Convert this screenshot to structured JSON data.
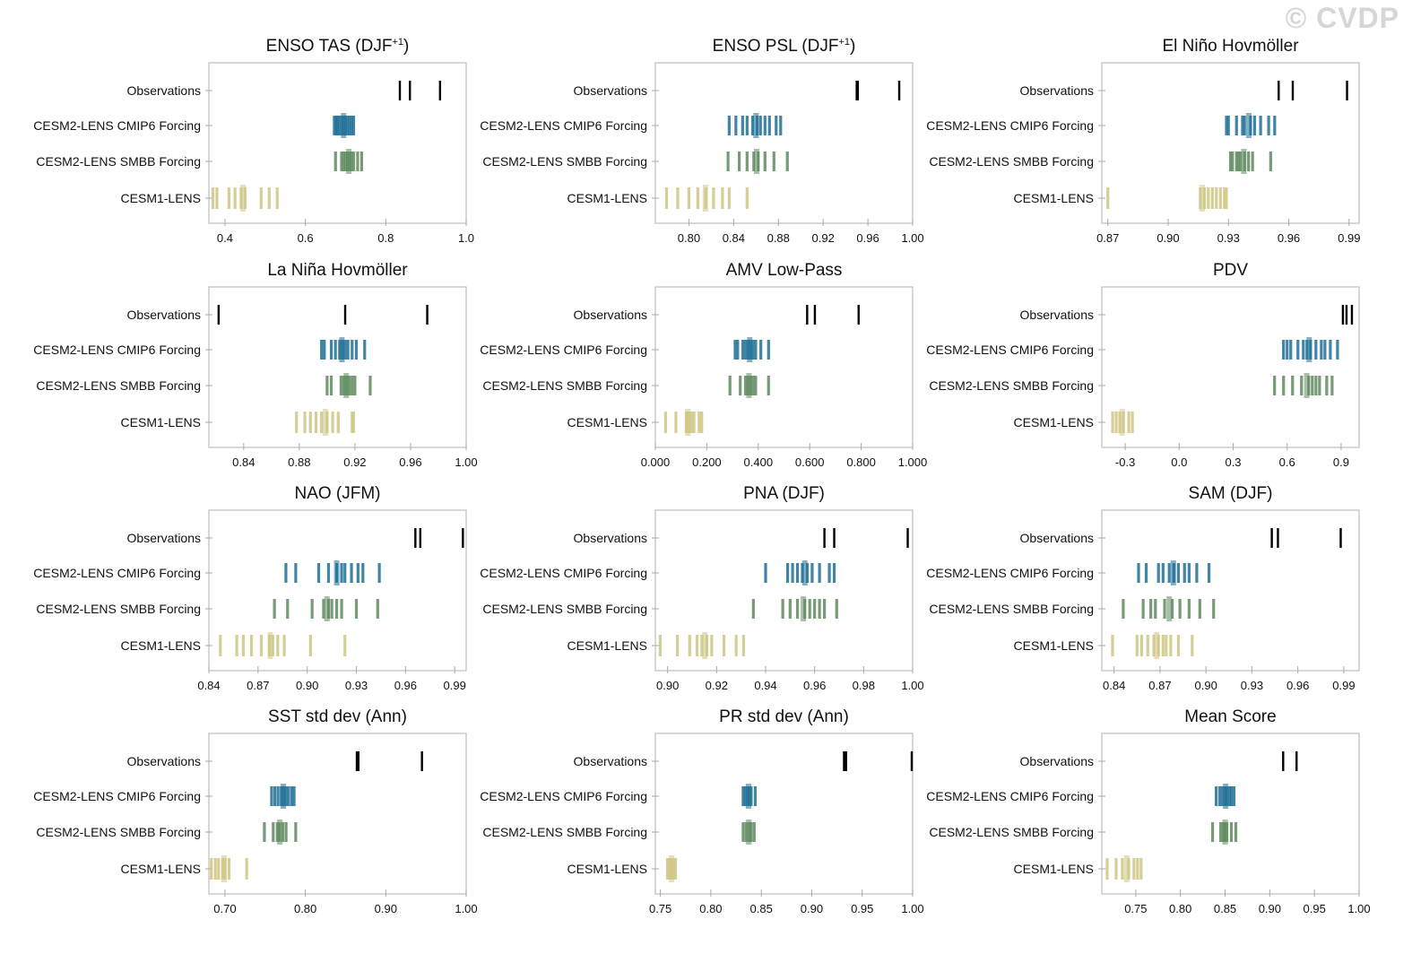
{
  "watermark": "© CVDP",
  "row_labels": [
    "Observations",
    "CESM2-LENS CMIP6 Forcing",
    "CESM2-LENS SMBB Forcing",
    "CESM1-LENS"
  ],
  "colors": {
    "obs": "#000000",
    "cmip6": "#1f6f96",
    "smbb": "#5f8a5f",
    "lens1": "#cfc783"
  },
  "chart_data": [
    {
      "type": "strip",
      "title": "ENSO TAS (DJF",
      "title_sup": "+1",
      "title_tail": ")",
      "xlim": [
        0.36,
        1.0
      ],
      "ticks": [
        "0.4",
        "0.6",
        "0.8",
        "1.0"
      ],
      "tick_values": [
        0.4,
        0.6,
        0.8,
        1.0
      ],
      "observations": [
        0.835,
        0.86,
        0.935
      ],
      "cmip6": [
        0.672,
        0.676,
        0.68,
        0.684,
        0.69,
        0.695,
        0.7,
        0.705,
        0.71,
        0.715,
        0.72
      ],
      "smbb": [
        0.675,
        0.69,
        0.695,
        0.7,
        0.705,
        0.71,
        0.715,
        0.72,
        0.73,
        0.74
      ],
      "lens1": [
        0.37,
        0.38,
        0.41,
        0.425,
        0.44,
        0.45,
        0.49,
        0.51,
        0.53
      ]
    },
    {
      "type": "strip",
      "title": "ENSO PSL (DJF",
      "title_sup": "+1",
      "title_tail": ")",
      "xlim": [
        0.77,
        1.0
      ],
      "ticks": [
        "0.80",
        "0.84",
        "0.88",
        "0.92",
        "0.96",
        "1.00"
      ],
      "tick_values": [
        0.8,
        0.84,
        0.88,
        0.92,
        0.96,
        1.0
      ],
      "observations": [
        0.95,
        0.951,
        0.988
      ],
      "cmip6": [
        0.836,
        0.842,
        0.848,
        0.852,
        0.857,
        0.861,
        0.864,
        0.868,
        0.872,
        0.878,
        0.882
      ],
      "smbb": [
        0.835,
        0.845,
        0.852,
        0.858,
        0.862,
        0.868,
        0.876,
        0.888
      ],
      "lens1": [
        0.78,
        0.79,
        0.8,
        0.808,
        0.815,
        0.822,
        0.83,
        0.836,
        0.852
      ]
    },
    {
      "type": "strip",
      "title": "El Niño Hovmöller",
      "title_sup": "",
      "title_tail": "",
      "xlim": [
        0.867,
        0.995
      ],
      "ticks": [
        "0.87",
        "0.90",
        "0.93",
        "0.96",
        "0.99"
      ],
      "tick_values": [
        0.87,
        0.9,
        0.93,
        0.96,
        0.99
      ],
      "observations": [
        0.955,
        0.962,
        0.989
      ],
      "cmip6": [
        0.929,
        0.93,
        0.934,
        0.937,
        0.938,
        0.941,
        0.943,
        0.946,
        0.95,
        0.953
      ],
      "smbb": [
        0.931,
        0.932,
        0.934,
        0.935,
        0.936,
        0.938,
        0.94,
        0.942,
        0.951
      ],
      "lens1": [
        0.87,
        0.916,
        0.918,
        0.92,
        0.922,
        0.924,
        0.926,
        0.928,
        0.929
      ]
    },
    {
      "type": "strip",
      "title": "La Niña Hovmöller",
      "title_sup": "",
      "title_tail": "",
      "xlim": [
        0.815,
        1.0
      ],
      "ticks": [
        "0.84",
        "0.88",
        "0.92",
        "0.96",
        "1.00"
      ],
      "tick_values": [
        0.84,
        0.88,
        0.92,
        0.96,
        1.0
      ],
      "observations": [
        0.822,
        0.913,
        0.972
      ],
      "cmip6": [
        0.896,
        0.898,
        0.903,
        0.906,
        0.909,
        0.911,
        0.913,
        0.915,
        0.918,
        0.921,
        0.927
      ],
      "smbb": [
        0.9,
        0.903,
        0.91,
        0.912,
        0.914,
        0.916,
        0.918,
        0.92,
        0.931
      ],
      "lens1": [
        0.878,
        0.884,
        0.888,
        0.892,
        0.896,
        0.9,
        0.904,
        0.908,
        0.918,
        0.919
      ]
    },
    {
      "type": "strip",
      "title": "AMV Low-Pass",
      "title_sup": "",
      "title_tail": "",
      "xlim": [
        0.0,
        1.0
      ],
      "ticks": [
        "0.000",
        "0.200",
        "0.400",
        "0.600",
        "0.800",
        "1.000"
      ],
      "tick_values": [
        0.0,
        0.2,
        0.4,
        0.6,
        0.8,
        1.0
      ],
      "observations": [
        0.59,
        0.62,
        0.79
      ],
      "cmip6": [
        0.31,
        0.32,
        0.34,
        0.35,
        0.36,
        0.37,
        0.38,
        0.39,
        0.41,
        0.44
      ],
      "smbb": [
        0.29,
        0.33,
        0.35,
        0.36,
        0.37,
        0.38,
        0.39,
        0.44
      ],
      "lens1": [
        0.04,
        0.08,
        0.12,
        0.13,
        0.14,
        0.15,
        0.17,
        0.18
      ]
    },
    {
      "type": "strip",
      "title": "PDV",
      "title_sup": "",
      "title_tail": "",
      "xlim": [
        -0.43,
        1.0
      ],
      "ticks": [
        "-0.3",
        "0.0",
        "0.3",
        "0.6",
        "0.9"
      ],
      "tick_values": [
        -0.3,
        0.0,
        0.3,
        0.6,
        0.9
      ],
      "observations": [
        0.91,
        0.93,
        0.96
      ],
      "cmip6": [
        0.58,
        0.6,
        0.62,
        0.66,
        0.69,
        0.71,
        0.73,
        0.76,
        0.79,
        0.81,
        0.84,
        0.88
      ],
      "smbb": [
        0.53,
        0.58,
        0.63,
        0.68,
        0.72,
        0.74,
        0.76,
        0.78,
        0.82,
        0.85
      ],
      "lens1": [
        -0.37,
        -0.35,
        -0.33,
        -0.31,
        -0.28,
        -0.26
      ]
    },
    {
      "type": "strip",
      "title": "NAO (JFM)",
      "title_sup": "",
      "title_tail": "",
      "xlim": [
        0.84,
        0.997
      ],
      "ticks": [
        "0.84",
        "0.87",
        "0.90",
        "0.93",
        "0.96",
        "0.99"
      ],
      "tick_values": [
        0.84,
        0.87,
        0.9,
        0.93,
        0.96,
        0.99
      ],
      "observations": [
        0.966,
        0.969,
        0.995
      ],
      "cmip6": [
        0.887,
        0.893,
        0.907,
        0.913,
        0.918,
        0.921,
        0.923,
        0.927,
        0.931,
        0.934,
        0.944
      ],
      "smbb": [
        0.88,
        0.888,
        0.903,
        0.91,
        0.913,
        0.915,
        0.918,
        0.921,
        0.93,
        0.943
      ],
      "lens1": [
        0.847,
        0.857,
        0.861,
        0.866,
        0.872,
        0.877,
        0.879,
        0.882,
        0.886,
        0.902,
        0.923
      ]
    },
    {
      "type": "strip",
      "title": "PNA (DJF)",
      "title_sup": "",
      "title_tail": "",
      "xlim": [
        0.895,
        1.0
      ],
      "ticks": [
        "0.90",
        "0.92",
        "0.94",
        "0.96",
        "0.98",
        "1.00"
      ],
      "tick_values": [
        0.9,
        0.92,
        0.94,
        0.96,
        0.98,
        1.0
      ],
      "observations": [
        0.964,
        0.968,
        0.998
      ],
      "cmip6": [
        0.94,
        0.949,
        0.951,
        0.953,
        0.955,
        0.957,
        0.959,
        0.962,
        0.966,
        0.968
      ],
      "smbb": [
        0.935,
        0.947,
        0.95,
        0.953,
        0.956,
        0.958,
        0.96,
        0.962,
        0.964,
        0.969
      ],
      "lens1": [
        0.897,
        0.904,
        0.909,
        0.912,
        0.914,
        0.916,
        0.918,
        0.923,
        0.928,
        0.931
      ]
    },
    {
      "type": "strip",
      "title": "SAM (DJF)",
      "title_sup": "",
      "title_tail": "",
      "xlim": [
        0.832,
        1.0
      ],
      "ticks": [
        "0.84",
        "0.87",
        "0.90",
        "0.93",
        "0.96",
        "0.99"
      ],
      "tick_values": [
        0.84,
        0.87,
        0.9,
        0.93,
        0.96,
        0.99
      ],
      "observations": [
        0.943,
        0.947,
        0.988
      ],
      "cmip6": [
        0.856,
        0.861,
        0.869,
        0.872,
        0.876,
        0.879,
        0.882,
        0.886,
        0.889,
        0.894,
        0.902
      ],
      "smbb": [
        0.846,
        0.859,
        0.864,
        0.867,
        0.873,
        0.878,
        0.883,
        0.889,
        0.896,
        0.905
      ],
      "lens1": [
        0.839,
        0.855,
        0.858,
        0.862,
        0.866,
        0.869,
        0.872,
        0.874,
        0.877,
        0.882,
        0.891
      ]
    },
    {
      "type": "strip",
      "title": "SST std dev (Ann)",
      "title_sup": "",
      "title_tail": "",
      "xlim": [
        0.68,
        1.0
      ],
      "ticks": [
        "0.70",
        "0.80",
        "0.90",
        "1.00"
      ],
      "tick_values": [
        0.7,
        0.8,
        0.9,
        1.0
      ],
      "observations": [
        0.864,
        0.866,
        0.945
      ],
      "cmip6": [
        0.758,
        0.762,
        0.766,
        0.77,
        0.773,
        0.776,
        0.779,
        0.783,
        0.786
      ],
      "smbb": [
        0.749,
        0.76,
        0.765,
        0.768,
        0.772,
        0.776,
        0.788
      ],
      "lens1": [
        0.683,
        0.688,
        0.692,
        0.697,
        0.7,
        0.705,
        0.727
      ]
    },
    {
      "type": "strip",
      "title": "PR std dev (Ann)",
      "title_sup": "",
      "title_tail": "",
      "xlim": [
        0.745,
        1.0
      ],
      "ticks": [
        "0.75",
        "0.80",
        "0.85",
        "0.90",
        "0.95",
        "1.00"
      ],
      "tick_values": [
        0.75,
        0.8,
        0.85,
        0.9,
        0.95,
        1.0
      ],
      "observations": [
        0.932,
        0.934,
        1.0
      ],
      "cmip6": [
        0.832,
        0.834,
        0.836,
        0.838,
        0.84,
        0.844
      ],
      "smbb": [
        0.832,
        0.835,
        0.838,
        0.84,
        0.843
      ],
      "lens1": [
        0.757,
        0.759,
        0.761,
        0.763,
        0.765
      ]
    },
    {
      "type": "strip",
      "title": "Mean Score",
      "title_sup": "",
      "title_tail": "",
      "xlim": [
        0.712,
        1.0
      ],
      "ticks": [
        "0.75",
        "0.80",
        "0.85",
        "0.90",
        "0.95",
        "1.00"
      ],
      "tick_values": [
        0.75,
        0.8,
        0.85,
        0.9,
        0.95,
        1.0
      ],
      "observations": [
        0.915,
        0.93
      ],
      "cmip6": [
        0.84,
        0.844,
        0.847,
        0.85,
        0.852,
        0.855,
        0.857,
        0.86
      ],
      "smbb": [
        0.836,
        0.845,
        0.848,
        0.85,
        0.852,
        0.857,
        0.862
      ],
      "lens1": [
        0.718,
        0.728,
        0.735,
        0.742,
        0.748,
        0.752,
        0.756
      ]
    }
  ]
}
